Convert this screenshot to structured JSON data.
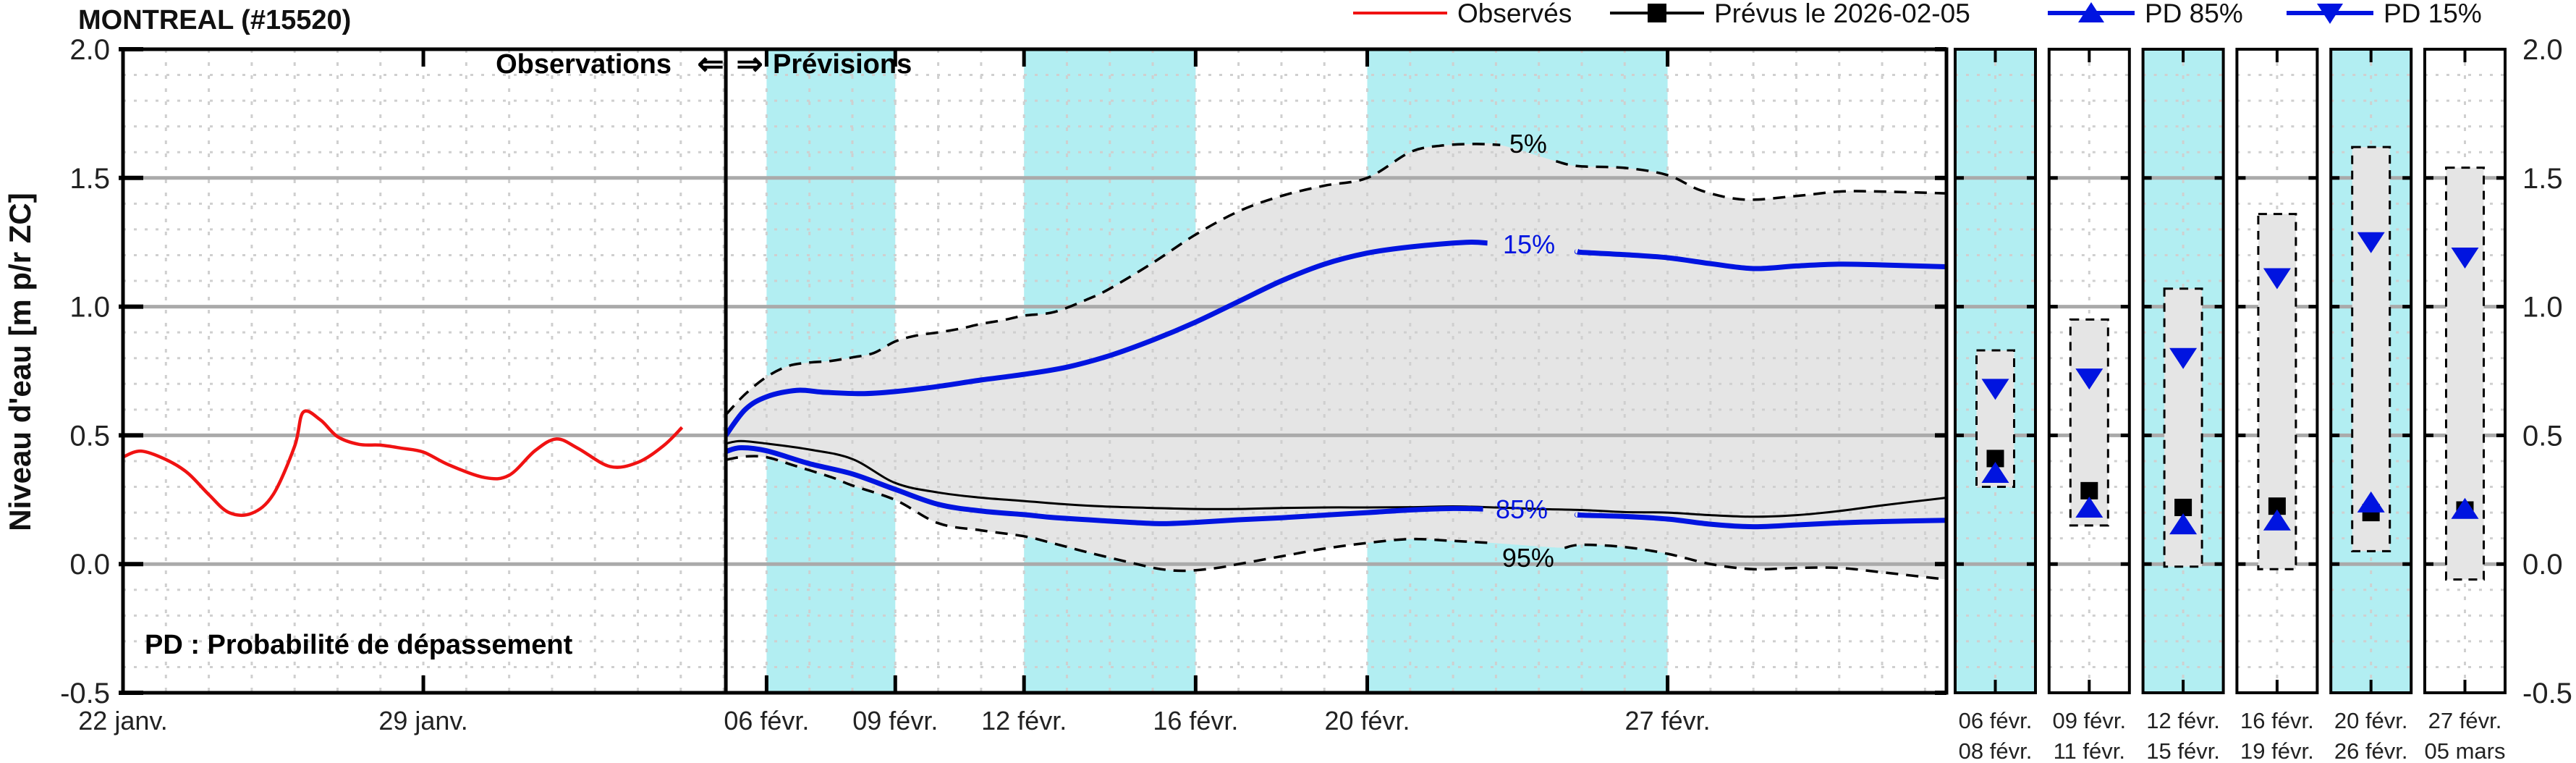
{
  "title": "MONTREAL (#15520)",
  "legend": {
    "items": [
      {
        "label": "Observés",
        "marker": "red-line"
      },
      {
        "label": "Prévus le 2026-02-05",
        "marker": "black-line-square"
      },
      {
        "label": "PD 85%",
        "marker": "blue-line-triangle-up"
      },
      {
        "label": "PD 15%",
        "marker": "blue-line-triangle-down"
      }
    ]
  },
  "annotations": {
    "observations": "Observations",
    "arrow_left": "⇐",
    "arrow_right": "⇒",
    "previsions": "Prévisions",
    "pd_note": "PD : Probabilité de dépassement"
  },
  "colors": {
    "observed_red": "#f01212",
    "forecast_blue": "#0014e0",
    "highlight_cyan": "#b2eef2",
    "band_gray": "#e5e5e5",
    "grid_major": "#aaaaaa",
    "grid_minor": "#cfcfcf",
    "axis_black": "#000000"
  },
  "chart_data": {
    "type": "line",
    "title": "MONTREAL (#15520)",
    "ylabel": "Niveau d'eau [m p/r ZC]",
    "ylim": [
      -0.5,
      2.0
    ],
    "grid": true,
    "x_axis_days_total": 42.5,
    "forecast_separator_day": 14.05,
    "y_ticks": [
      {
        "v": 2.0,
        "label": "2.0"
      },
      {
        "v": 1.5,
        "label": "1.5"
      },
      {
        "v": 1.0,
        "label": "1.0"
      },
      {
        "v": 0.5,
        "label": "0.5"
      },
      {
        "v": 0.0,
        "label": "0.0"
      },
      {
        "v": -0.5,
        "label": "-0.5"
      }
    ],
    "y_minor_step": 0.1,
    "x_ticks": [
      {
        "day": 0,
        "label": "22 janv."
      },
      {
        "day": 7,
        "label": "29 janv."
      },
      {
        "day": 15,
        "label": "06 févr."
      },
      {
        "day": 18,
        "label": "09 févr."
      },
      {
        "day": 21,
        "label": "12 févr."
      },
      {
        "day": 25,
        "label": "16 févr."
      },
      {
        "day": 29,
        "label": "20 févr."
      },
      {
        "day": 36,
        "label": "27 févr."
      }
    ],
    "cyan_bands_days": [
      [
        15,
        18
      ],
      [
        21,
        25
      ],
      [
        29,
        36
      ]
    ],
    "series": [
      {
        "id": "observed",
        "name": "Observés",
        "style": "red-solid",
        "points": [
          [
            0,
            0.416
          ],
          [
            0.42,
            0.439
          ],
          [
            1,
            0.406
          ],
          [
            1.5,
            0.355
          ],
          [
            2,
            0.27
          ],
          [
            2.47,
            0.2
          ],
          [
            3,
            0.197
          ],
          [
            3.5,
            0.27
          ],
          [
            4,
            0.458
          ],
          [
            4.2,
            0.59
          ],
          [
            4.6,
            0.56
          ],
          [
            5,
            0.495
          ],
          [
            5.5,
            0.465
          ],
          [
            6,
            0.462
          ],
          [
            6.5,
            0.45
          ],
          [
            7,
            0.435
          ],
          [
            7.6,
            0.385
          ],
          [
            8.43,
            0.336
          ],
          [
            9,
            0.345
          ],
          [
            9.6,
            0.44
          ],
          [
            10.1,
            0.486
          ],
          [
            10.6,
            0.45
          ],
          [
            11.35,
            0.379
          ],
          [
            12,
            0.395
          ],
          [
            12.6,
            0.46
          ],
          [
            13.03,
            0.531
          ]
        ]
      },
      {
        "id": "p5",
        "name": "PD 5%",
        "style": "black-dashed",
        "label_gap": [
          32.1,
          33.4
        ],
        "points": [
          [
            14.05,
            0.58
          ],
          [
            14.5,
            0.66
          ],
          [
            15,
            0.727
          ],
          [
            15.5,
            0.769
          ],
          [
            16,
            0.783
          ],
          [
            16.5,
            0.789
          ],
          [
            17,
            0.803
          ],
          [
            17.5,
            0.82
          ],
          [
            18,
            0.865
          ],
          [
            18.5,
            0.888
          ],
          [
            19,
            0.9
          ],
          [
            19.5,
            0.914
          ],
          [
            20,
            0.933
          ],
          [
            20.5,
            0.947
          ],
          [
            21,
            0.965
          ],
          [
            21.7,
            0.979
          ],
          [
            22.5,
            1.03
          ],
          [
            23,
            1.07
          ],
          [
            24,
            1.17
          ],
          [
            25,
            1.28
          ],
          [
            26,
            1.37
          ],
          [
            27,
            1.43
          ],
          [
            28,
            1.47
          ],
          [
            29,
            1.5
          ],
          [
            30,
            1.6
          ],
          [
            30.7,
            1.625
          ],
          [
            31.5,
            1.632
          ],
          [
            32.1,
            1.628
          ],
          [
            33.4,
            1.565
          ],
          [
            33.9,
            1.546
          ],
          [
            35,
            1.539
          ],
          [
            36,
            1.511
          ],
          [
            36.8,
            1.45
          ],
          [
            37.8,
            1.416
          ],
          [
            39,
            1.43
          ],
          [
            40,
            1.447
          ],
          [
            41,
            1.447
          ],
          [
            42.5,
            1.44
          ]
        ]
      },
      {
        "id": "p15",
        "name": "PD 15%",
        "style": "blue-solid",
        "label_gap": [
          31.8,
          33.9
        ],
        "points": [
          [
            14.05,
            0.5
          ],
          [
            14.5,
            0.6
          ],
          [
            15,
            0.65
          ],
          [
            15.7,
            0.675
          ],
          [
            16.3,
            0.668
          ],
          [
            17.2,
            0.662
          ],
          [
            18,
            0.67
          ],
          [
            19,
            0.69
          ],
          [
            20,
            0.715
          ],
          [
            21,
            0.737
          ],
          [
            22,
            0.765
          ],
          [
            23,
            0.81
          ],
          [
            24,
            0.87
          ],
          [
            25,
            0.94
          ],
          [
            26,
            1.02
          ],
          [
            27,
            1.1
          ],
          [
            28,
            1.165
          ],
          [
            29,
            1.208
          ],
          [
            30,
            1.232
          ],
          [
            31.3,
            1.25
          ],
          [
            31.8,
            1.247
          ],
          [
            33.9,
            1.215
          ],
          [
            34,
            1.211
          ],
          [
            35,
            1.202
          ],
          [
            36,
            1.19
          ],
          [
            37,
            1.167
          ],
          [
            38,
            1.148
          ],
          [
            39,
            1.158
          ],
          [
            40,
            1.165
          ],
          [
            41,
            1.162
          ],
          [
            42.5,
            1.155
          ]
        ]
      },
      {
        "id": "median",
        "name": "Prévus le 2026-02-05",
        "style": "black-solid",
        "points": [
          [
            14.05,
            0.468
          ],
          [
            14.4,
            0.478
          ],
          [
            15,
            0.468
          ],
          [
            16,
            0.445
          ],
          [
            17,
            0.408
          ],
          [
            18,
            0.315
          ],
          [
            19,
            0.278
          ],
          [
            20,
            0.258
          ],
          [
            21,
            0.245
          ],
          [
            22,
            0.232
          ],
          [
            23,
            0.223
          ],
          [
            24,
            0.218
          ],
          [
            25,
            0.214
          ],
          [
            26,
            0.214
          ],
          [
            27,
            0.218
          ],
          [
            28,
            0.22
          ],
          [
            29,
            0.22
          ],
          [
            30,
            0.221
          ],
          [
            31,
            0.224
          ],
          [
            32,
            0.22
          ],
          [
            33,
            0.214
          ],
          [
            34,
            0.21
          ],
          [
            35,
            0.202
          ],
          [
            36,
            0.2
          ],
          [
            37,
            0.19
          ],
          [
            38,
            0.184
          ],
          [
            39,
            0.19
          ],
          [
            40,
            0.206
          ],
          [
            41,
            0.228
          ],
          [
            42.5,
            0.258
          ]
        ]
      },
      {
        "id": "p85",
        "name": "PD 85%",
        "style": "blue-solid",
        "label_gap": [
          31.7,
          33.9
        ],
        "points": [
          [
            14.05,
            0.437
          ],
          [
            14.4,
            0.452
          ],
          [
            15,
            0.44
          ],
          [
            16,
            0.39
          ],
          [
            17,
            0.35
          ],
          [
            18,
            0.29
          ],
          [
            19,
            0.232
          ],
          [
            20,
            0.206
          ],
          [
            21,
            0.192
          ],
          [
            21.6,
            0.182
          ],
          [
            22.5,
            0.172
          ],
          [
            23.5,
            0.162
          ],
          [
            24.2,
            0.157
          ],
          [
            25,
            0.162
          ],
          [
            26,
            0.172
          ],
          [
            27,
            0.18
          ],
          [
            28,
            0.19
          ],
          [
            29,
            0.2
          ],
          [
            30,
            0.21
          ],
          [
            31,
            0.216
          ],
          [
            31.7,
            0.214
          ],
          [
            33.9,
            0.192
          ],
          [
            34,
            0.19
          ],
          [
            35,
            0.185
          ],
          [
            36,
            0.175
          ],
          [
            37,
            0.155
          ],
          [
            38,
            0.145
          ],
          [
            39,
            0.152
          ],
          [
            40,
            0.16
          ],
          [
            41,
            0.165
          ],
          [
            42.5,
            0.17
          ]
        ]
      },
      {
        "id": "p95",
        "name": "PD 95%",
        "style": "black-dashed",
        "label_gap": [
          31.9,
          33.6
        ],
        "points": [
          [
            14.05,
            0.405
          ],
          [
            14.5,
            0.418
          ],
          [
            15,
            0.415
          ],
          [
            15.6,
            0.385
          ],
          [
            16.5,
            0.338
          ],
          [
            17,
            0.305
          ],
          [
            18,
            0.249
          ],
          [
            19,
            0.159
          ],
          [
            20,
            0.131
          ],
          [
            21,
            0.108
          ],
          [
            21.6,
            0.084
          ],
          [
            22.5,
            0.045
          ],
          [
            23.5,
            0.005
          ],
          [
            24.2,
            -0.02
          ],
          [
            24.8,
            -0.026
          ],
          [
            25.5,
            -0.015
          ],
          [
            26,
            0.0
          ],
          [
            27,
            0.03
          ],
          [
            28,
            0.06
          ],
          [
            29,
            0.082
          ],
          [
            30,
            0.097
          ],
          [
            31,
            0.09
          ],
          [
            31.9,
            0.082
          ],
          [
            33.6,
            0.063
          ],
          [
            34,
            0.075
          ],
          [
            35,
            0.066
          ],
          [
            36,
            0.04
          ],
          [
            37,
            0.0
          ],
          [
            38,
            -0.02
          ],
          [
            39,
            -0.015
          ],
          [
            40,
            -0.015
          ],
          [
            41,
            -0.032
          ],
          [
            42.5,
            -0.06
          ]
        ]
      }
    ],
    "band_between": [
      "p5",
      "p95"
    ],
    "percent_labels": [
      {
        "text": "5%",
        "x_day": 32.75,
        "value": 1.634,
        "color": "black"
      },
      {
        "text": "15%",
        "x_day": 32.77,
        "value": 1.244,
        "color": "blue"
      },
      {
        "text": "85%",
        "x_day": 32.6,
        "value": 0.214,
        "color": "blue"
      },
      {
        "text": "95%",
        "x_day": 32.75,
        "value": 0.026,
        "color": "black"
      }
    ],
    "panels": [
      {
        "date_start": "06 févr.",
        "date_end": "08 févr.",
        "highlight": true,
        "range": [
          0.3,
          0.83
        ],
        "pd15": 0.68,
        "forecast": 0.41,
        "pd85": 0.355
      },
      {
        "date_start": "09 févr.",
        "date_end": "11 févr.",
        "highlight": false,
        "range": [
          0.15,
          0.95
        ],
        "pd15": 0.72,
        "forecast": 0.285,
        "pd85": 0.22
      },
      {
        "date_start": "12 févr.",
        "date_end": "15 févr.",
        "highlight": true,
        "range": [
          -0.01,
          1.07
        ],
        "pd15": 0.8,
        "forecast": 0.22,
        "pd85": 0.155
      },
      {
        "date_start": "16 févr.",
        "date_end": "19 févr.",
        "highlight": false,
        "range": [
          -0.02,
          1.36
        ],
        "pd15": 1.11,
        "forecast": 0.225,
        "pd85": 0.17
      },
      {
        "date_start": "20 févr.",
        "date_end": "26 févr.",
        "highlight": true,
        "range": [
          0.05,
          1.62
        ],
        "pd15": 1.25,
        "forecast": 0.2,
        "pd85": 0.24
      },
      {
        "date_start": "27 févr.",
        "date_end": "05 mars",
        "highlight": false,
        "range": [
          -0.06,
          1.54
        ],
        "pd15": 1.19,
        "forecast": 0.21,
        "pd85": 0.215
      }
    ]
  }
}
